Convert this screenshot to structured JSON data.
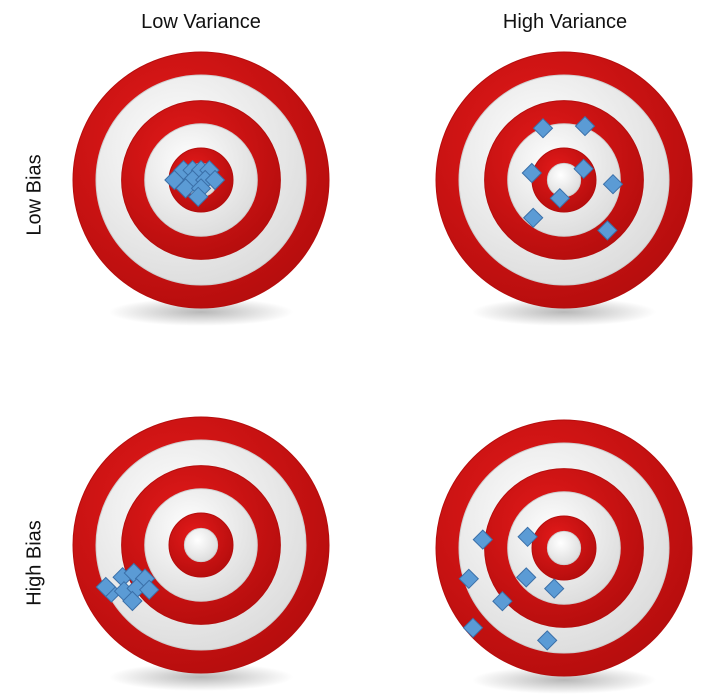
{
  "labels": {
    "columns": [
      "Low Variance",
      "High Variance"
    ],
    "rows": [
      "Low Bias",
      "High Bias"
    ]
  },
  "colors": {
    "ring_red": "#e41a1a",
    "ring_red_dark": "#b50d0d",
    "ring_white": "#f4f4f4",
    "marker_fill": "#5b9bd5",
    "marker_stroke": "#3a6fa8"
  },
  "marker_shape": "diamond",
  "targets": [
    {
      "name": "low-bias-low-variance",
      "row": "Low Bias",
      "column": "Low Variance",
      "hits": [
        [
          -0.25,
          -0.14
        ],
        [
          -0.12,
          -0.14
        ],
        [
          0.0,
          -0.14
        ],
        [
          0.12,
          -0.14
        ],
        [
          -0.38,
          0.0
        ],
        [
          -0.12,
          0.0
        ],
        [
          0.06,
          0.0
        ],
        [
          0.2,
          0.0
        ],
        [
          -0.22,
          0.12
        ],
        [
          0.0,
          0.12
        ],
        [
          -0.04,
          0.24
        ]
      ]
    },
    {
      "name": "low-bias-high-variance",
      "row": "Low Bias",
      "column": "High Variance",
      "hits": [
        [
          -0.3,
          -0.74
        ],
        [
          0.3,
          -0.77
        ],
        [
          -0.46,
          -0.1
        ],
        [
          0.28,
          -0.16
        ],
        [
          -0.06,
          0.26
        ],
        [
          0.7,
          0.06
        ],
        [
          -0.44,
          0.54
        ],
        [
          0.62,
          0.72
        ]
      ]
    },
    {
      "name": "high-bias-low-variance",
      "row": "High Bias",
      "column": "Low Variance",
      "hits": [
        [
          -1.12,
          0.46
        ],
        [
          -0.96,
          0.4
        ],
        [
          -0.8,
          0.48
        ],
        [
          -1.28,
          0.68
        ],
        [
          -1.1,
          0.66
        ],
        [
          -0.92,
          0.62
        ],
        [
          -0.74,
          0.64
        ],
        [
          -0.98,
          0.8
        ],
        [
          -1.36,
          0.6
        ]
      ]
    },
    {
      "name": "high-bias-high-variance",
      "row": "High Bias",
      "column": "High Variance",
      "hits": [
        [
          -1.16,
          -0.12
        ],
        [
          -0.52,
          -0.16
        ],
        [
          -1.36,
          0.44
        ],
        [
          -0.54,
          0.42
        ],
        [
          -0.14,
          0.58
        ],
        [
          -0.88,
          0.76
        ],
        [
          -1.3,
          1.14
        ],
        [
          -0.24,
          1.32
        ]
      ]
    }
  ]
}
